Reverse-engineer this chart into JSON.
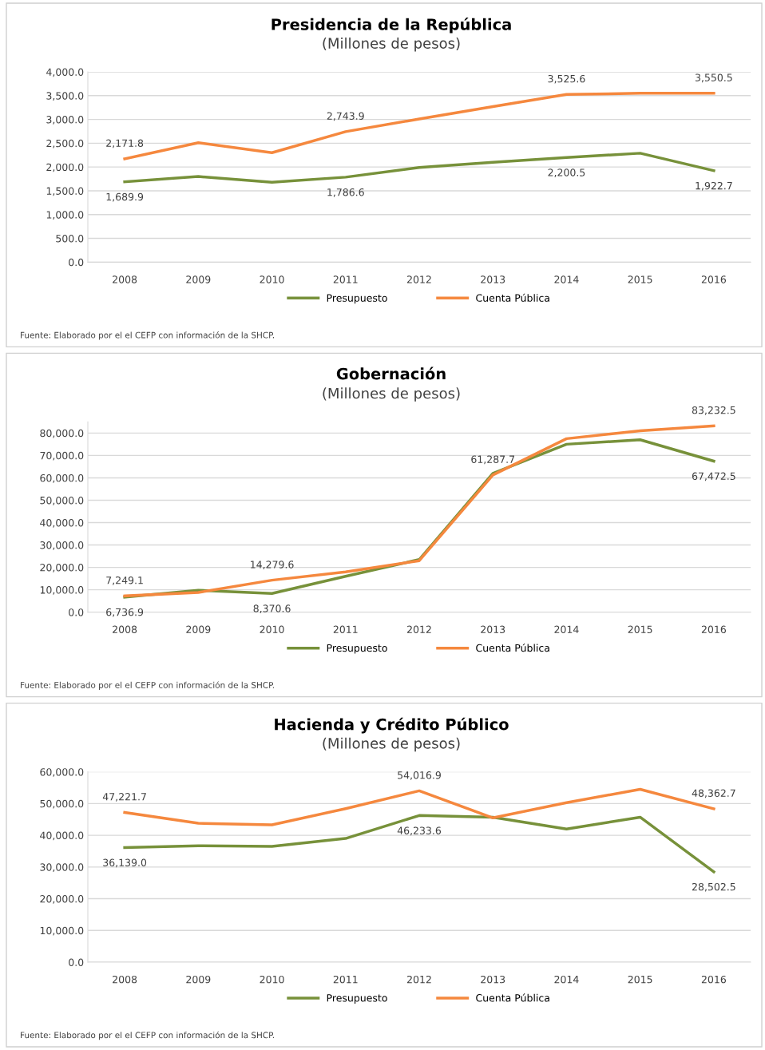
{
  "chart_data": [
    {
      "type": "line",
      "title": "Presidencia de la República",
      "subtitle": "(Millones de pesos)",
      "categories": [
        "2008",
        "2009",
        "2010",
        "2011",
        "2012",
        "2013",
        "2014",
        "2015",
        "2016"
      ],
      "series": [
        {
          "name": "Presupuesto",
          "color": "#77913a",
          "values": [
            1689.9,
            1800,
            1680,
            1786.6,
            1990,
            2100,
            2200.5,
            2290,
            1922.7
          ],
          "value_labels": [
            "1,689.9",
            null,
            null,
            "1,786.6",
            null,
            null,
            "2,200.5",
            null,
            "1,922.7"
          ]
        },
        {
          "name": "Cuenta Pública",
          "color": "#f5883e",
          "values": [
            2171.8,
            2510,
            2300,
            2743.9,
            3010,
            3270,
            3525.6,
            3550,
            3550.5
          ],
          "value_labels": [
            "2,171.8",
            null,
            null,
            "2,743.9",
            null,
            null,
            "3,525.6",
            null,
            "3,550.5"
          ]
        }
      ],
      "ylim": [
        0,
        4000
      ],
      "yticks": [
        {
          "value": 0,
          "label": "0.0"
        },
        {
          "value": 500,
          "label": "500.0"
        },
        {
          "value": 1000,
          "label": "1,000.0"
        },
        {
          "value": 1500,
          "label": "1,500.0"
        },
        {
          "value": 2000,
          "label": "2,000.0"
        },
        {
          "value": 2500,
          "label": "2,500.0"
        },
        {
          "value": 3000,
          "label": "3,000.0"
        },
        {
          "value": 3500,
          "label": "3,500.0"
        },
        {
          "value": 4000,
          "label": "4,000.0"
        }
      ],
      "grid": "y",
      "legend": "bottom",
      "marker": "none",
      "line_style": "solid",
      "annotations": [
        "Fuente: Elaborado por el el CEFP con información de la SHCP."
      ]
    },
    {
      "type": "line",
      "title": "Gobernación",
      "subtitle": "(Millones de pesos)",
      "categories": [
        "2008",
        "2009",
        "2010",
        "2011",
        "2012",
        "2013",
        "2014",
        "2015",
        "2016"
      ],
      "series": [
        {
          "name": "Presupuesto",
          "color": "#77913a",
          "values": [
            6736.9,
            9800,
            8370.6,
            16000,
            23500,
            62000,
            75000,
            77000,
            67472.5
          ],
          "value_labels": [
            "6,736.9",
            null,
            "8,370.6",
            null,
            null,
            null,
            null,
            null,
            "67,472.5"
          ]
        },
        {
          "name": "Cuenta Pública",
          "color": "#f5883e",
          "values": [
            7249.1,
            8800,
            14279.6,
            18000,
            23000,
            61287.7,
            77500,
            81000,
            83232.5
          ],
          "value_labels": [
            "7,249.1",
            null,
            "14,279.6",
            null,
            null,
            "61,287.7",
            null,
            null,
            "83,232.5"
          ]
        }
      ],
      "ylim": [
        0,
        85000
      ],
      "yticks": [
        {
          "value": 0,
          "label": "0.0"
        },
        {
          "value": 10000,
          "label": "10,000.0"
        },
        {
          "value": 20000,
          "label": "20,000.0"
        },
        {
          "value": 30000,
          "label": "30,000.0"
        },
        {
          "value": 40000,
          "label": "40,000.0"
        },
        {
          "value": 50000,
          "label": "50,000.0"
        },
        {
          "value": 60000,
          "label": "60,000.0"
        },
        {
          "value": 70000,
          "label": "70,000.0"
        },
        {
          "value": 80000,
          "label": "80,000.0"
        }
      ],
      "grid": "y",
      "legend": "bottom",
      "marker": "none",
      "line_style": "solid",
      "annotations": [
        "Fuente: Elaborado por el el CEFP con información de la SHCP."
      ]
    },
    {
      "type": "line",
      "title": "Hacienda y Crédito Público",
      "subtitle": "(Millones de pesos)",
      "categories": [
        "2008",
        "2009",
        "2010",
        "2011",
        "2012",
        "2013",
        "2014",
        "2015",
        "2016"
      ],
      "series": [
        {
          "name": "Presupuesto",
          "color": "#77913a",
          "values": [
            36139.0,
            36700,
            36500,
            39000,
            46233.6,
            45700,
            42000,
            45700,
            28502.5
          ],
          "value_labels": [
            "36,139.0",
            null,
            null,
            null,
            "46,233.6",
            null,
            null,
            null,
            "28,502.5"
          ]
        },
        {
          "name": "Cuenta Pública",
          "color": "#f5883e",
          "values": [
            47221.7,
            43800,
            43300,
            48400,
            54016.9,
            45500,
            50300,
            54500,
            48362.7
          ],
          "value_labels": [
            "47,221.7",
            null,
            null,
            null,
            "54,016.9",
            null,
            null,
            null,
            "48,362.7"
          ]
        }
      ],
      "ylim": [
        0,
        60000
      ],
      "yticks": [
        {
          "value": 0,
          "label": "0.0"
        },
        {
          "value": 10000,
          "label": "10,000.0"
        },
        {
          "value": 20000,
          "label": "20,000.0"
        },
        {
          "value": 30000,
          "label": "30,000.0"
        },
        {
          "value": 40000,
          "label": "40,000.0"
        },
        {
          "value": 50000,
          "label": "50,000.0"
        },
        {
          "value": 60000,
          "label": "60,000.0"
        }
      ],
      "grid": "y",
      "legend": "bottom",
      "marker": "none",
      "line_style": "solid",
      "annotations": [
        "Fuente: Elaborado por el el CEFP con información de la SHCP."
      ]
    }
  ]
}
